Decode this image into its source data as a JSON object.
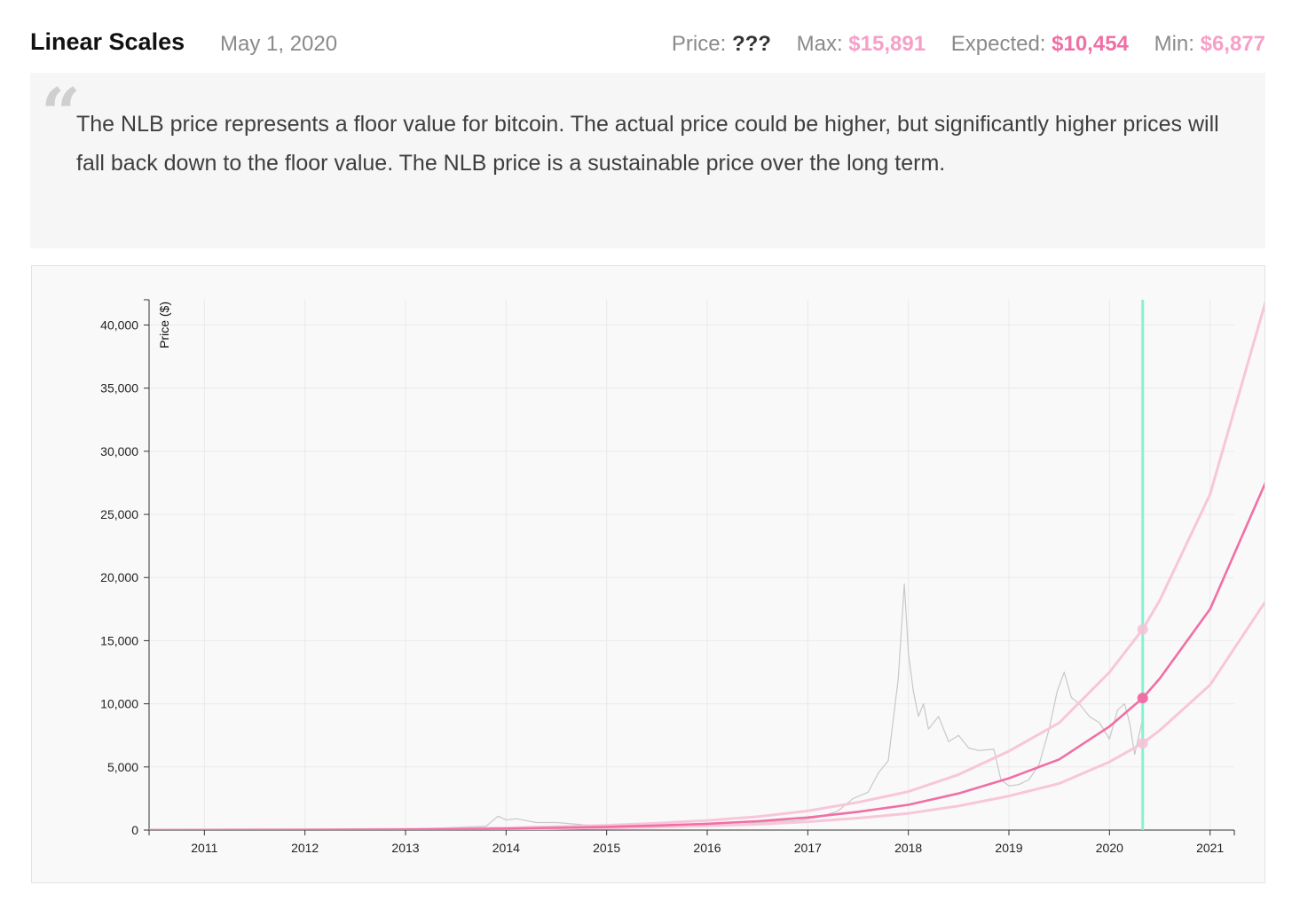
{
  "header": {
    "title": "Linear Scales",
    "date": "May 1, 2020",
    "stats": {
      "price_label": "Price:",
      "price_value": "???",
      "max_label": "Max:",
      "max_value": "$15,891",
      "expected_label": "Expected:",
      "expected_value": "$10,454",
      "min_label": "Min:",
      "min_value": "$6,877"
    }
  },
  "quote": {
    "mark": "“",
    "text": "The NLB price represents a floor value for bitcoin. The actual price could be higher, but significantly higher prices will fall back down to the floor value. The NLB price is a sustainable price over the long term."
  },
  "colors": {
    "price_line": "#c8c8c8",
    "expected_line": "#f06fa4",
    "band_line": "#f8c6d9",
    "cursor_line": "#86f2d4",
    "grid": "#eaeaea"
  },
  "chart_data": {
    "type": "line",
    "title": "",
    "xlabel": "",
    "ylabel": "Price ($)",
    "ylim": [
      0,
      42000
    ],
    "xlim": [
      2010.45,
      2021.55
    ],
    "x_ticks": [
      "2011",
      "2012",
      "2013",
      "2014",
      "2015",
      "2016",
      "2017",
      "2018",
      "2019",
      "2020",
      "2021"
    ],
    "y_ticks": [
      "0",
      "5,000",
      "10,000",
      "15,000",
      "20,000",
      "25,000",
      "30,000",
      "35,000",
      "40,000"
    ],
    "grid": true,
    "cursor": {
      "x": 2020.33,
      "label": "May 1, 2020"
    },
    "markers": [
      {
        "series": "Max",
        "x": 2020.33,
        "y": 15891
      },
      {
        "series": "Expected",
        "x": 2020.33,
        "y": 10454
      },
      {
        "series": "Min",
        "x": 2020.33,
        "y": 6877
      }
    ],
    "series": [
      {
        "name": "Price",
        "x": [
          2010.45,
          2011.5,
          2012.5,
          2013.0,
          2013.3,
          2013.8,
          2013.92,
          2014.0,
          2014.1,
          2014.3,
          2014.5,
          2014.8,
          2015.0,
          2015.5,
          2015.9,
          2016.3,
          2016.6,
          2016.9,
          2017.1,
          2017.3,
          2017.45,
          2017.6,
          2017.7,
          2017.8,
          2017.9,
          2017.96,
          2018.0,
          2018.05,
          2018.1,
          2018.15,
          2018.2,
          2018.3,
          2018.4,
          2018.5,
          2018.6,
          2018.7,
          2018.85,
          2018.92,
          2019.0,
          2019.1,
          2019.2,
          2019.3,
          2019.4,
          2019.48,
          2019.55,
          2019.62,
          2019.7,
          2019.8,
          2019.9,
          2020.0,
          2020.08,
          2020.15,
          2020.2,
          2020.25,
          2020.33
        ],
        "y": [
          0,
          5,
          10,
          20,
          150,
          300,
          1100,
          800,
          900,
          600,
          600,
          400,
          300,
          250,
          400,
          450,
          650,
          750,
          1000,
          1500,
          2500,
          3000,
          4500,
          5500,
          12000,
          19500,
          14000,
          11000,
          9000,
          10000,
          8000,
          9000,
          7000,
          7500,
          6500,
          6300,
          6400,
          4000,
          3500,
          3600,
          4000,
          5200,
          8000,
          11000,
          12500,
          10500,
          10000,
          9000,
          8500,
          7200,
          9500,
          10000,
          8500,
          6000,
          8800
        ]
      },
      {
        "name": "Expected",
        "x": [
          2010.45,
          2011.0,
          2012.0,
          2013.0,
          2014.0,
          2015.0,
          2015.5,
          2016.0,
          2016.5,
          2017.0,
          2017.5,
          2018.0,
          2018.5,
          2019.0,
          2019.5,
          2020.0,
          2020.33,
          2020.5,
          2021.0,
          2021.55
        ],
        "y": [
          1,
          3,
          12,
          40,
          110,
          250,
          360,
          500,
          700,
          1000,
          1450,
          2000,
          2900,
          4100,
          5600,
          8200,
          10454,
          12000,
          17500,
          27500
        ]
      },
      {
        "name": "Max",
        "x": [
          2010.45,
          2011.0,
          2012.0,
          2013.0,
          2014.0,
          2015.0,
          2015.5,
          2016.0,
          2016.5,
          2017.0,
          2017.5,
          2018.0,
          2018.5,
          2019.0,
          2019.5,
          2020.0,
          2020.33,
          2020.5,
          2021.0,
          2021.55
        ],
        "y": [
          1,
          4,
          18,
          60,
          170,
          380,
          550,
          760,
          1060,
          1520,
          2200,
          3050,
          4400,
          6250,
          8500,
          12500,
          15891,
          18200,
          26600,
          41800
        ]
      },
      {
        "name": "Min",
        "x": [
          2010.45,
          2011.0,
          2012.0,
          2013.0,
          2014.0,
          2015.0,
          2015.5,
          2016.0,
          2016.5,
          2017.0,
          2017.5,
          2018.0,
          2018.5,
          2019.0,
          2019.5,
          2020.0,
          2020.33,
          2020.5,
          2021.0,
          2021.55
        ],
        "y": [
          1,
          2,
          8,
          26,
          72,
          165,
          240,
          330,
          460,
          660,
          950,
          1320,
          1910,
          2700,
          3690,
          5400,
          6877,
          7900,
          11500,
          18100
        ]
      }
    ]
  }
}
